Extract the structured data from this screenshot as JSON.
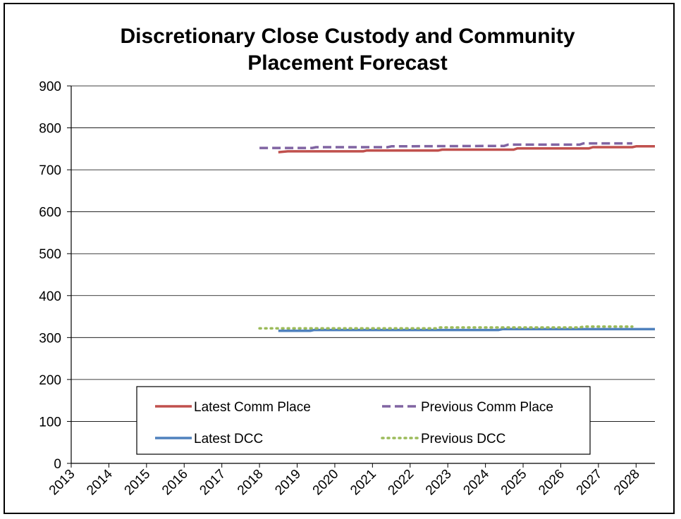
{
  "chart_data": {
    "type": "line",
    "title": "Discretionary Close Custody and Community Placement Forecast",
    "title_lines": [
      "Discretionary Close Custody and Community",
      "Placement Forecast"
    ],
    "xlabel": "",
    "ylabel": "",
    "x_ticks": [
      "2013",
      "2014",
      "2015",
      "2016",
      "2017",
      "2018",
      "2019",
      "2020",
      "2021",
      "2022",
      "2023",
      "2024",
      "2025",
      "2026",
      "2027",
      "2028"
    ],
    "xlim": [
      2013,
      2028.5
    ],
    "ylim": [
      0,
      900
    ],
    "y_ticks": [
      0,
      100,
      200,
      300,
      400,
      500,
      600,
      700,
      800,
      900
    ],
    "grid": "horizontal",
    "legend": "bottom-center",
    "series": [
      {
        "name": "Latest Comm Place",
        "color": "#C0504D",
        "style": "solid",
        "points": [
          [
            2018.5,
            742
          ],
          [
            2018.75,
            744
          ],
          [
            2020.75,
            744
          ],
          [
            2020.85,
            746
          ],
          [
            2022.75,
            746
          ],
          [
            2022.85,
            748
          ],
          [
            2024.75,
            748
          ],
          [
            2024.85,
            751
          ],
          [
            2026.75,
            751
          ],
          [
            2026.85,
            754
          ],
          [
            2027.9,
            754
          ],
          [
            2028.0,
            756
          ],
          [
            2028.5,
            756
          ]
        ]
      },
      {
        "name": "Previous Comm Place",
        "color": "#8064A2",
        "style": "dashed",
        "points": [
          [
            2018.0,
            752
          ],
          [
            2019.4,
            752
          ],
          [
            2019.5,
            754
          ],
          [
            2021.4,
            754
          ],
          [
            2021.5,
            756
          ],
          [
            2024.5,
            757
          ],
          [
            2024.6,
            760
          ],
          [
            2026.5,
            760
          ],
          [
            2026.6,
            763
          ],
          [
            2027.9,
            763
          ]
        ]
      },
      {
        "name": "Latest DCC",
        "color": "#4F81BD",
        "style": "solid",
        "points": [
          [
            2018.5,
            316
          ],
          [
            2019.35,
            316
          ],
          [
            2019.45,
            318
          ],
          [
            2024.35,
            318
          ],
          [
            2024.45,
            320
          ],
          [
            2028.5,
            320
          ]
        ]
      },
      {
        "name": "Previous DCC",
        "color": "#9BBB59",
        "style": "dotted",
        "points": [
          [
            2018.0,
            322
          ],
          [
            2019.5,
            322
          ],
          [
            2022.7,
            322
          ],
          [
            2022.8,
            324
          ],
          [
            2026.5,
            324
          ],
          [
            2026.6,
            326
          ],
          [
            2027.9,
            326
          ]
        ]
      }
    ]
  }
}
